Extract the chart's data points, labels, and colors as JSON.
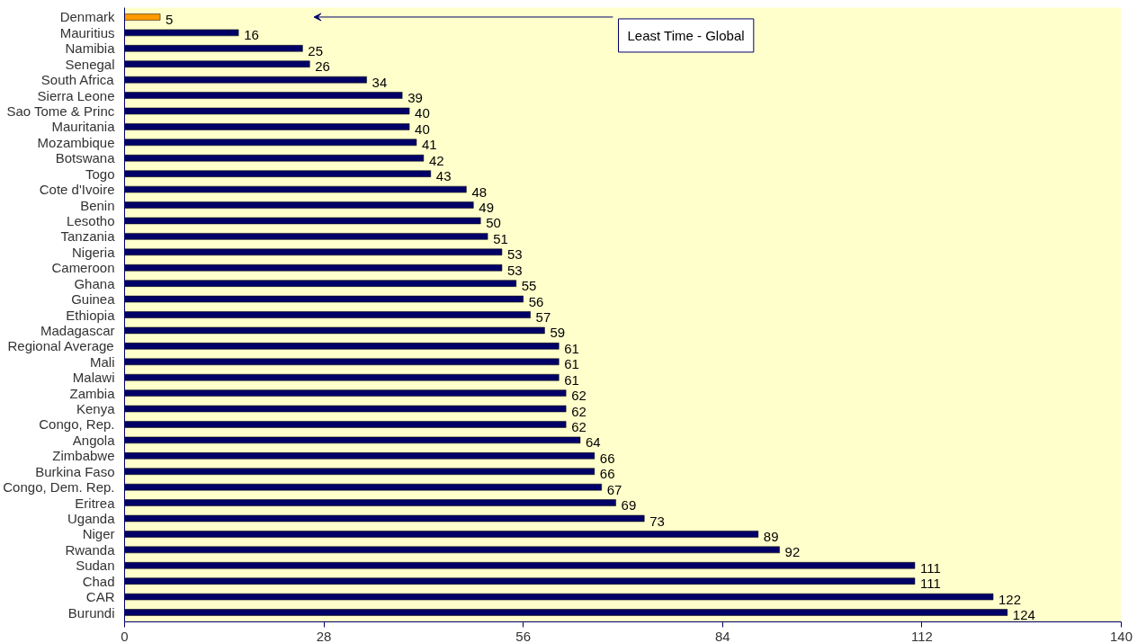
{
  "chart_data": {
    "type": "bar",
    "orientation": "horizontal",
    "categories": [
      "Denmark",
      "Mauritius",
      "Namibia",
      "Senegal",
      "South Africa",
      "Sierra Leone",
      "Sao Tome & Princ",
      "Mauritania",
      "Mozambique",
      "Botswana",
      "Togo",
      "Cote d'Ivoire",
      "Benin",
      "Lesotho",
      "Tanzania",
      "Nigeria",
      "Cameroon",
      "Ghana",
      "Guinea",
      "Ethiopia",
      "Madagascar",
      "Regional Average",
      "Mali",
      "Malawi",
      "Zambia",
      "Kenya",
      "Congo, Rep.",
      "Angola",
      "Zimbabwe",
      "Burkina Faso",
      "Congo, Dem. Rep.",
      "Eritrea",
      "Uganda",
      "Niger",
      "Rwanda",
      "Sudan",
      "Chad",
      "CAR",
      "Burundi"
    ],
    "values": [
      5,
      16,
      25,
      26,
      34,
      39,
      40,
      40,
      41,
      42,
      43,
      48,
      49,
      50,
      51,
      53,
      53,
      55,
      56,
      57,
      59,
      61,
      61,
      61,
      62,
      62,
      62,
      64,
      66,
      66,
      67,
      69,
      73,
      89,
      92,
      111,
      111,
      122,
      124
    ],
    "colors": [
      "#ff9900",
      "#000066",
      "#000066",
      "#000066",
      "#000066",
      "#000066",
      "#000066",
      "#000066",
      "#000066",
      "#000066",
      "#000066",
      "#000066",
      "#000066",
      "#000066",
      "#000066",
      "#000066",
      "#000066",
      "#000066",
      "#000066",
      "#000066",
      "#000066",
      "#000066",
      "#000066",
      "#000066",
      "#000066",
      "#000066",
      "#000066",
      "#000066",
      "#000066",
      "#000066",
      "#000066",
      "#000066",
      "#000066",
      "#000066",
      "#000066",
      "#000066",
      "#000066",
      "#000066",
      "#000066"
    ],
    "xlim": [
      0,
      140
    ],
    "xticks": [
      0,
      28,
      56,
      84,
      112,
      140
    ],
    "data_labels": true,
    "grid": false,
    "annotations": [
      "Least Time - Global"
    ]
  }
}
